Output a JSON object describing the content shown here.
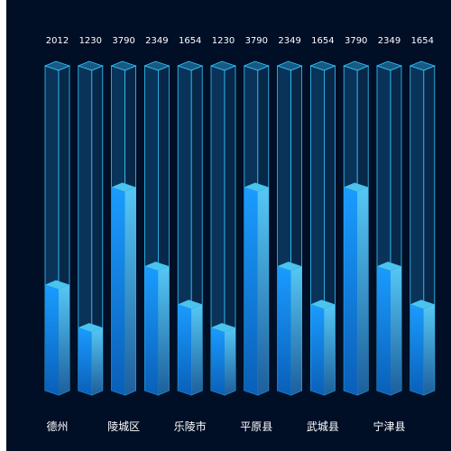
{
  "chart_data": {
    "type": "bar",
    "style": "3d-cylinder-bars",
    "categories": [
      "德州",
      "",
      "陵城区",
      "",
      "乐陵市",
      "",
      "平原县",
      "",
      "武城县",
      "",
      "宁津县",
      ""
    ],
    "values": [
      2012,
      1230,
      3790,
      2349,
      1654,
      1230,
      3790,
      2349,
      1654,
      3790,
      2349,
      1654
    ],
    "value_labels": [
      "2012",
      "1230",
      "3790",
      "2349",
      "1654",
      "1230",
      "3790",
      "2349",
      "1654",
      "3790",
      "2349",
      "1654"
    ],
    "ylim": [
      0,
      6000
    ],
    "grid": false,
    "legend": "none",
    "colors": {
      "background": "#000e26",
      "track_face": "#0d3d66",
      "track_side": "#0a2f52",
      "track_top": "#1b6f9e",
      "track_edge": "#33c8ff",
      "bar_front_top": "#1a9cff",
      "bar_front_bottom": "#0a5fb8",
      "bar_side_top": "#56c8f5",
      "bar_side_bottom": "#1d5f9c",
      "bar_cap": "#49c4ef",
      "label": "#ffffff"
    }
  }
}
